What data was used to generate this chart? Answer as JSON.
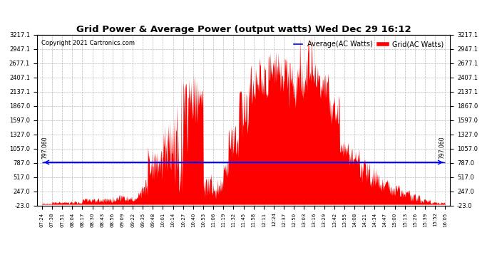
{
  "title": "Grid Power & Average Power (output watts) Wed Dec 29 16:12",
  "copyright": "Copyright 2021 Cartronics.com",
  "legend_avg": "Average(AC Watts)",
  "legend_grid": "Grid(AC Watts)",
  "avg_value": 797.06,
  "avg_label": "797.060",
  "yticks": [
    -23.0,
    247.0,
    517.0,
    787.0,
    1057.0,
    1327.0,
    1597.0,
    1867.0,
    2137.1,
    2407.1,
    2677.1,
    2947.1,
    3217.1
  ],
  "ylim": [
    -23.0,
    3217.1
  ],
  "background_color": "#ffffff",
  "grid_color": "#bbbbbb",
  "fill_color": "#ff0000",
  "avg_line_color": "#0000ff",
  "title_color": "#000000",
  "copyright_color": "#000000",
  "time_labels": [
    "07:24",
    "07:38",
    "07:51",
    "08:04",
    "08:17",
    "08:30",
    "08:43",
    "08:56",
    "09:09",
    "09:22",
    "09:35",
    "09:48",
    "10:01",
    "10:14",
    "10:27",
    "10:40",
    "10:53",
    "11:06",
    "11:19",
    "11:32",
    "11:45",
    "11:58",
    "12:11",
    "12:24",
    "12:37",
    "12:50",
    "13:03",
    "13:16",
    "13:29",
    "13:42",
    "13:55",
    "14:08",
    "14:21",
    "14:34",
    "14:47",
    "15:00",
    "15:13",
    "15:26",
    "15:39",
    "15:52",
    "16:05"
  ],
  "n_labels": 41,
  "n_points": 820
}
